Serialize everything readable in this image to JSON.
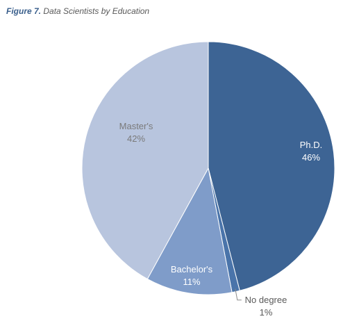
{
  "figure": {
    "label": "Figure 7.",
    "title": "Data Scientists by Education"
  },
  "chart_data": {
    "type": "pie",
    "title": "Data Scientists by Education",
    "slices": [
      {
        "label": "Ph.D.",
        "value": 46,
        "display": "46%",
        "color": "#3d6494",
        "text_color": "#ffffff"
      },
      {
        "label": "No degree",
        "value": 1,
        "display": "1%",
        "color": "#4a74aa",
        "text_color": "#595959"
      },
      {
        "label": "Bachelor's",
        "value": 11,
        "display": "11%",
        "color": "#7f9cc9",
        "text_color": "#ffffff"
      },
      {
        "label": "Master's",
        "value": 42,
        "display": "42%",
        "color": "#b8c5de",
        "text_color": "#7a7a7a"
      }
    ],
    "start_angle_deg": 0,
    "direction": "clockwise",
    "legend": "none"
  }
}
